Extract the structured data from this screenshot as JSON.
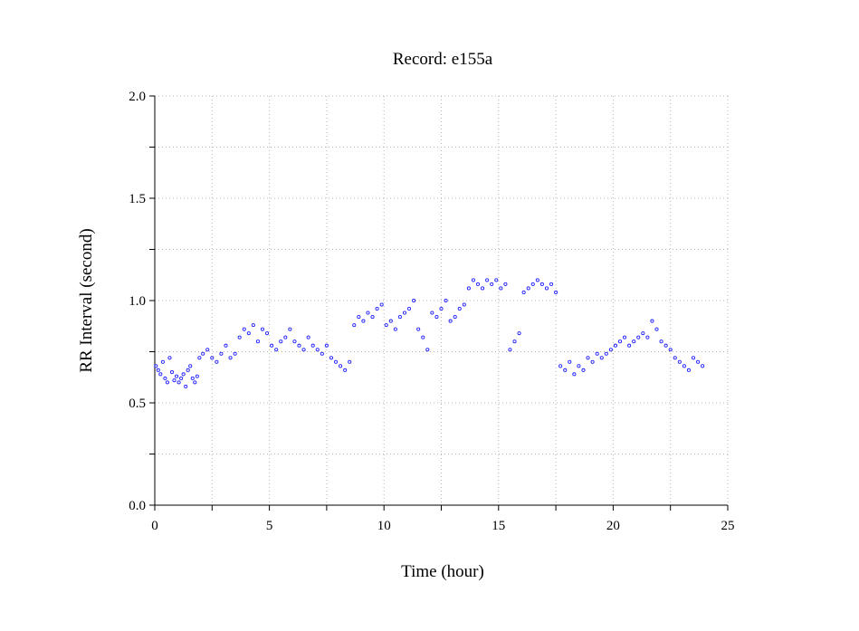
{
  "chart_data": {
    "type": "scatter",
    "title": "Record:  e155a",
    "xlabel": "Time (hour)",
    "ylabel": "RR Interval (second)",
    "xlim": [
      0,
      25
    ],
    "ylim": [
      0,
      2
    ],
    "xticks": [
      0,
      5,
      10,
      15,
      20,
      25
    ],
    "xtick_labels": [
      "0",
      "5",
      "10",
      "15",
      "20",
      "25"
    ],
    "yticks": [
      0,
      0.5,
      1,
      1.5,
      2
    ],
    "ytick_labels": [
      "0.0",
      "0.5",
      "1.0",
      "1.5",
      "2.0"
    ],
    "grid": true,
    "marker_color": "#2020ff",
    "series": [
      {
        "x": [
          0.05,
          0.15,
          0.25,
          0.35,
          0.45,
          0.55,
          0.65,
          0.75,
          0.85,
          0.95,
          1.05,
          1.15,
          1.25,
          1.35,
          1.45,
          1.55,
          1.65,
          1.75,
          1.85,
          1.95,
          2.1,
          2.3,
          2.5,
          2.7,
          2.9,
          3.1,
          3.3,
          3.5,
          3.7,
          3.9,
          4.1,
          4.3,
          4.5,
          4.7,
          4.9,
          5.1,
          5.3,
          5.5,
          5.7,
          5.9,
          6.1,
          6.3,
          6.5,
          6.7,
          6.9,
          7.1,
          7.3,
          7.5,
          7.7,
          7.9,
          8.1,
          8.3,
          8.5,
          8.7,
          8.9,
          9.1,
          9.3,
          9.5,
          9.7,
          9.9,
          10.1,
          10.3,
          10.5,
          10.7,
          10.9,
          11.1,
          11.3,
          11.5,
          11.7,
          11.9,
          12.1,
          12.3,
          12.5,
          12.7,
          12.9,
          13.1,
          13.3,
          13.5,
          13.7,
          13.9,
          14.1,
          14.3,
          14.5,
          14.7,
          14.9,
          15.1,
          15.3,
          15.5,
          15.7,
          15.9,
          16.1,
          16.3,
          16.5,
          16.7,
          16.9,
          17.1,
          17.3,
          17.5,
          17.7,
          17.9,
          18.1,
          18.3,
          18.5,
          18.7,
          18.9,
          19.1,
          19.3,
          19.5,
          19.7,
          19.9,
          20.1,
          20.3,
          20.5,
          20.7,
          20.9,
          21.1,
          21.3,
          21.5,
          21.7,
          21.9,
          22.1,
          22.3,
          22.5,
          22.7,
          22.9,
          23.1,
          23.3,
          23.5,
          23.7,
          23.9
        ],
        "y": [
          0.68,
          0.66,
          0.64,
          0.7,
          0.62,
          0.6,
          0.72,
          0.65,
          0.61,
          0.63,
          0.6,
          0.62,
          0.64,
          0.58,
          0.66,
          0.68,
          0.62,
          0.6,
          0.63,
          0.72,
          0.74,
          0.76,
          0.72,
          0.7,
          0.74,
          0.78,
          0.72,
          0.74,
          0.82,
          0.86,
          0.84,
          0.88,
          0.8,
          0.86,
          0.84,
          0.78,
          0.76,
          0.8,
          0.82,
          0.86,
          0.8,
          0.78,
          0.76,
          0.82,
          0.78,
          0.76,
          0.74,
          0.78,
          0.72,
          0.7,
          0.68,
          0.66,
          0.7,
          0.88,
          0.92,
          0.9,
          0.94,
          0.92,
          0.96,
          0.98,
          0.88,
          0.9,
          0.86,
          0.92,
          0.94,
          0.96,
          1.0,
          0.86,
          0.82,
          0.76,
          0.94,
          0.92,
          0.96,
          1.0,
          0.9,
          0.92,
          0.96,
          0.98,
          1.06,
          1.1,
          1.08,
          1.06,
          1.1,
          1.08,
          1.1,
          1.06,
          1.08,
          0.76,
          0.8,
          0.84,
          1.04,
          1.06,
          1.08,
          1.1,
          1.08,
          1.06,
          1.08,
          1.04,
          0.68,
          0.66,
          0.7,
          0.64,
          0.68,
          0.66,
          0.72,
          0.7,
          0.74,
          0.72,
          0.74,
          0.76,
          0.78,
          0.8,
          0.82,
          0.78,
          0.8,
          0.82,
          0.84,
          0.82,
          0.9,
          0.86,
          0.8,
          0.78,
          0.76,
          0.72,
          0.7,
          0.68,
          0.66,
          0.72,
          0.7,
          0.68
        ]
      }
    ]
  }
}
